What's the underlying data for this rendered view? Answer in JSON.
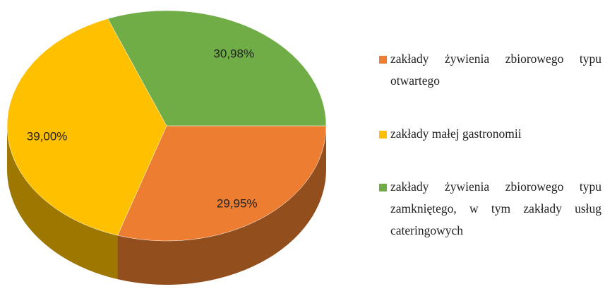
{
  "chart_data": {
    "type": "pie",
    "three_d": true,
    "categories": [
      "zakłady żywienia zbiorowego typu otwartego",
      "zakłady małej gastronomii",
      "zakłady żywienia zbiorowego typu zamkniętego, w tym zakłady usług cateringowych"
    ],
    "values": [
      29.95,
      39.0,
      30.98
    ],
    "value_labels": [
      "29,95%",
      "39,00%",
      "30,98%"
    ],
    "colors": [
      "#ed7d31",
      "#ffc000",
      "#70ad47"
    ],
    "legend": "right"
  }
}
